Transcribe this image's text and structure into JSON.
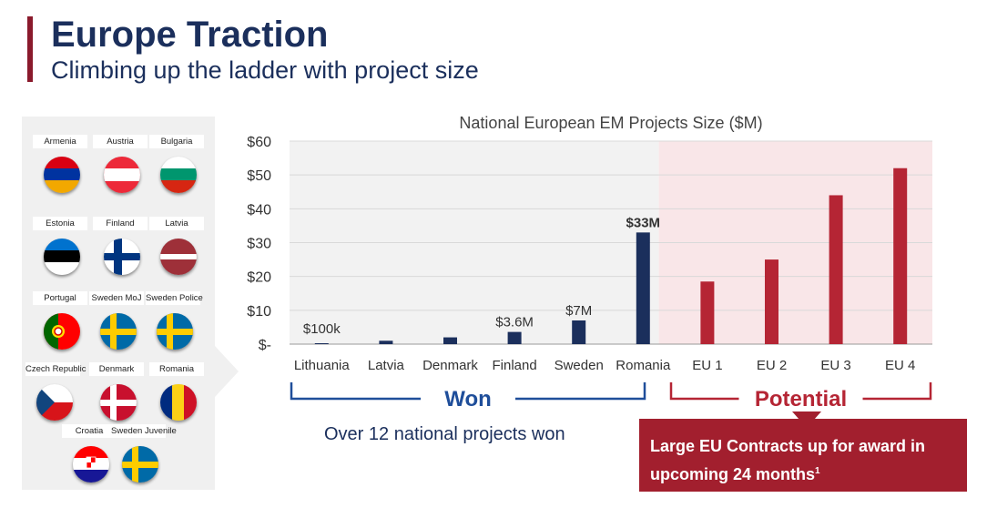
{
  "header": {
    "title": "Europe Traction",
    "subtitle": "Climbing up the ladder with project size"
  },
  "flags": [
    {
      "label": "Armenia",
      "icon": "armenia-flag-icon"
    },
    {
      "label": "Austria",
      "icon": "austria-flag-icon"
    },
    {
      "label": "Bulgaria",
      "icon": "bulgaria-flag-icon"
    },
    {
      "label": "Estonia",
      "icon": "estonia-flag-icon"
    },
    {
      "label": "Finland",
      "icon": "finland-flag-icon"
    },
    {
      "label": "Latvia",
      "icon": "latvia-flag-icon"
    },
    {
      "label": "Portugal",
      "icon": "portugal-flag-icon"
    },
    {
      "label": "Sweden MoJ",
      "icon": "sweden-flag-icon"
    },
    {
      "label": "Sweden Police",
      "icon": "sweden-flag-icon"
    },
    {
      "label": "Czech Republic",
      "icon": "czech-flag-icon"
    },
    {
      "label": "Denmark",
      "icon": "denmark-flag-icon"
    },
    {
      "label": "Romania",
      "icon": "romania-flag-icon"
    },
    {
      "label": "Croatia",
      "icon": "croatia-flag-icon"
    },
    {
      "label": "Sweden Juvenile",
      "icon": "sweden-flag-icon"
    }
  ],
  "chart_data": {
    "type": "bar",
    "title": "National European EM Projects Size ($M)",
    "categories": [
      "Lithuania",
      "Latvia",
      "Denmark",
      "Finland",
      "Sweden",
      "Romania",
      "EU 1",
      "EU 2",
      "EU 3",
      "EU 4"
    ],
    "values": [
      0.1,
      1,
      2,
      3.6,
      7,
      33,
      18.5,
      25,
      44,
      52
    ],
    "data_labels": [
      "$100k",
      "",
      "",
      "$3.6M",
      "$7M",
      "$33M",
      "",
      "",
      "",
      ""
    ],
    "yticks": [
      0,
      10,
      20,
      30,
      40,
      50,
      60
    ],
    "ytick_labels": [
      "$-",
      "$10",
      "$20",
      "$30",
      "$40",
      "$50",
      "$60"
    ],
    "ylim": [
      0,
      60
    ],
    "won_count": 6,
    "colors": {
      "won": "#1b2f5c",
      "potential": "#b52534",
      "won_bg": "#f2f2f2",
      "potential_bg": "#f9e6e8"
    },
    "groups": {
      "won": "Won",
      "potential": "Potential"
    }
  },
  "notes": {
    "won": "Over 12 national projects won",
    "callout": "Large EU Contracts up for award in upcoming 24 months",
    "callout_sup": "1"
  }
}
